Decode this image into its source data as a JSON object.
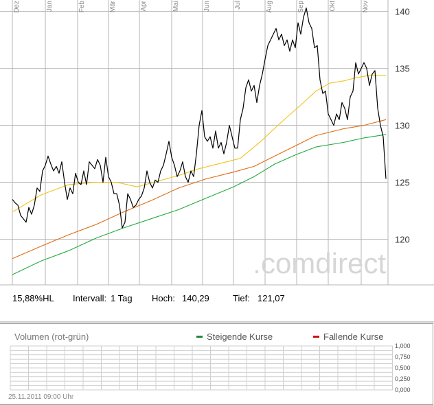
{
  "chart_data": [
    {
      "type": "line",
      "months": [
        "Dez",
        "Jan",
        "Feb",
        "Mär",
        "Apr",
        "Mai",
        "Jun",
        "Jul",
        "Aug",
        "Sep",
        "Okt",
        "Nov"
      ],
      "y_ticks": [
        "140",
        "135",
        "130",
        "125",
        "120"
      ],
      "ylim": [
        116,
        141
      ],
      "watermark": ".comdirect",
      "series": [
        {
          "role": "price",
          "color": "#000000",
          "values": [
            [
              18,
              123.5
            ],
            [
              22,
              123.2
            ],
            [
              26,
              123.0
            ],
            [
              30,
              122.1
            ],
            [
              34,
              121.8
            ],
            [
              38,
              121.5
            ],
            [
              42,
              122.8
            ],
            [
              46,
              122.2
            ],
            [
              50,
              123.0
            ],
            [
              54,
              124.5
            ],
            [
              58,
              124.2
            ],
            [
              62,
              126.0
            ],
            [
              66,
              126.5
            ],
            [
              70,
              127.3
            ],
            [
              74,
              126.6
            ],
            [
              78,
              126.0
            ],
            [
              82,
              126.4
            ],
            [
              86,
              125.8
            ],
            [
              90,
              126.8
            ],
            [
              94,
              125.0
            ],
            [
              98,
              123.5
            ],
            [
              102,
              124.5
            ],
            [
              106,
              124.0
            ],
            [
              110,
              125.8
            ],
            [
              114,
              125.0
            ],
            [
              118,
              124.8
            ],
            [
              122,
              126.0
            ],
            [
              126,
              124.8
            ],
            [
              130,
              126.8
            ],
            [
              134,
              126.5
            ],
            [
              138,
              126.2
            ],
            [
              142,
              127.0
            ],
            [
              146,
              126.5
            ],
            [
              150,
              125.0
            ],
            [
              154,
              127.2
            ],
            [
              158,
              125.5
            ],
            [
              162,
              125.0
            ],
            [
              166,
              124.0
            ],
            [
              170,
              124.0
            ],
            [
              174,
              123.0
            ],
            [
              178,
              121.0
            ],
            [
              182,
              121.5
            ],
            [
              186,
              124.0
            ],
            [
              190,
              123.5
            ],
            [
              194,
              122.8
            ],
            [
              198,
              123.0
            ],
            [
              202,
              123.5
            ],
            [
              206,
              123.8
            ],
            [
              210,
              124.5
            ],
            [
              214,
              126.0
            ],
            [
              218,
              125.0
            ],
            [
              222,
              124.5
            ],
            [
              226,
              125.2
            ],
            [
              230,
              125.0
            ],
            [
              234,
              126.0
            ],
            [
              238,
              126.5
            ],
            [
              242,
              127.5
            ],
            [
              246,
              128.6
            ],
            [
              250,
              127.2
            ],
            [
              254,
              126.5
            ],
            [
              258,
              125.5
            ],
            [
              262,
              126.0
            ],
            [
              266,
              126.8
            ],
            [
              270,
              125.5
            ],
            [
              274,
              125.0
            ],
            [
              278,
              126.0
            ],
            [
              282,
              125.5
            ],
            [
              286,
              127.5
            ],
            [
              290,
              130.0
            ],
            [
              294,
              131.3
            ],
            [
              298,
              129.0
            ],
            [
              302,
              128.6
            ],
            [
              306,
              129.0
            ],
            [
              310,
              128.0
            ],
            [
              314,
              129.5
            ],
            [
              318,
              128.0
            ],
            [
              322,
              128.5
            ],
            [
              326,
              127.5
            ],
            [
              330,
              128.5
            ],
            [
              334,
              130.0
            ],
            [
              338,
              129.0
            ],
            [
              342,
              128.0
            ],
            [
              346,
              128.0
            ],
            [
              350,
              130.5
            ],
            [
              354,
              131.5
            ],
            [
              358,
              133.3
            ],
            [
              362,
              134.0
            ],
            [
              366,
              133.0
            ],
            [
              370,
              133.5
            ],
            [
              374,
              132.0
            ],
            [
              378,
              133.5
            ],
            [
              382,
              134.5
            ],
            [
              386,
              135.8
            ],
            [
              390,
              137.0
            ],
            [
              394,
              137.5
            ],
            [
              398,
              138.0
            ],
            [
              402,
              138.5
            ],
            [
              406,
              137.5
            ],
            [
              410,
              138.0
            ],
            [
              414,
              137.0
            ],
            [
              418,
              137.5
            ],
            [
              422,
              136.5
            ],
            [
              426,
              137.5
            ],
            [
              430,
              136.8
            ],
            [
              434,
              139.0
            ],
            [
              438,
              138.0
            ],
            [
              442,
              139.5
            ],
            [
              446,
              140.3
            ],
            [
              450,
              139.0
            ],
            [
              454,
              138.5
            ],
            [
              458,
              136.8
            ],
            [
              462,
              137.0
            ],
            [
              466,
              134.0
            ],
            [
              470,
              132.8
            ],
            [
              474,
              133.0
            ],
            [
              478,
              131.0
            ],
            [
              482,
              130.5
            ],
            [
              486,
              130.0
            ],
            [
              490,
              131.0
            ],
            [
              494,
              130.5
            ],
            [
              498,
              132.0
            ],
            [
              502,
              131.5
            ],
            [
              506,
              130.5
            ],
            [
              510,
              132.5
            ],
            [
              514,
              133.0
            ],
            [
              518,
              135.5
            ],
            [
              522,
              134.5
            ],
            [
              526,
              135.0
            ],
            [
              530,
              135.5
            ],
            [
              534,
              135.0
            ],
            [
              538,
              133.5
            ],
            [
              542,
              134.5
            ],
            [
              546,
              134.8
            ],
            [
              550,
              131.5
            ],
            [
              554,
              130.0
            ],
            [
              558,
              129.0
            ],
            [
              562,
              125.3
            ]
          ]
        },
        {
          "role": "avg-long",
          "color": "#f2c21b",
          "values": [
            [
              18,
              122.4
            ],
            [
              60,
              123.9
            ],
            [
              100,
              124.8
            ],
            [
              140,
              125.0
            ],
            [
              170,
              125.0
            ],
            [
              200,
              124.6
            ],
            [
              230,
              125.1
            ],
            [
              260,
              125.6
            ],
            [
              290,
              126.2
            ],
            [
              330,
              126.8
            ],
            [
              350,
              127.1
            ],
            [
              380,
              128.6
            ],
            [
              410,
              130.3
            ],
            [
              440,
              131.9
            ],
            [
              460,
              133.0
            ],
            [
              480,
              133.7
            ],
            [
              500,
              133.9
            ],
            [
              520,
              134.2
            ],
            [
              540,
              134.4
            ],
            [
              562,
              134.4
            ]
          ]
        },
        {
          "role": "avg-mid",
          "color": "#e06a10",
          "values": [
            [
              18,
              118.3
            ],
            [
              60,
              119.4
            ],
            [
              100,
              120.4
            ],
            [
              140,
              121.3
            ],
            [
              180,
              122.4
            ],
            [
              220,
              123.4
            ],
            [
              260,
              124.5
            ],
            [
              300,
              125.3
            ],
            [
              340,
              125.9
            ],
            [
              370,
              126.4
            ],
            [
              400,
              127.3
            ],
            [
              430,
              128.2
            ],
            [
              460,
              129.1
            ],
            [
              500,
              129.7
            ],
            [
              530,
              130.0
            ],
            [
              562,
              130.5
            ]
          ]
        },
        {
          "role": "avg-short",
          "color": "#22aa3e",
          "values": [
            [
              18,
              116.9
            ],
            [
              60,
              118.1
            ],
            [
              100,
              119.0
            ],
            [
              140,
              120.1
            ],
            [
              180,
              121.0
            ],
            [
              220,
              121.8
            ],
            [
              260,
              122.6
            ],
            [
              300,
              123.6
            ],
            [
              340,
              124.6
            ],
            [
              370,
              125.5
            ],
            [
              400,
              126.6
            ],
            [
              430,
              127.4
            ],
            [
              460,
              128.1
            ],
            [
              500,
              128.5
            ],
            [
              530,
              128.9
            ],
            [
              562,
              129.2
            ]
          ]
        }
      ]
    },
    {
      "type": "bar",
      "title": "Volumen (rot-grün)",
      "y_ticks": [
        "1,000",
        "0,750",
        "0,500",
        "0,250",
        "0,000"
      ],
      "values": []
    }
  ],
  "info": {
    "range": "15,88%HL",
    "interval_label": "Intervall:",
    "interval_value": "1 Tag",
    "high_label": "Hoch:",
    "high_value": "140,29",
    "low_label": "Tief:",
    "low_value": "121,07"
  },
  "legend": {
    "rising": "Steigende Kurse",
    "falling": "Fallende Kurse",
    "rising_color": "#1e8a3c",
    "falling_color": "#cc1111"
  },
  "footer": {
    "timestamp": "25.11.2011 09:00 Uhr"
  }
}
